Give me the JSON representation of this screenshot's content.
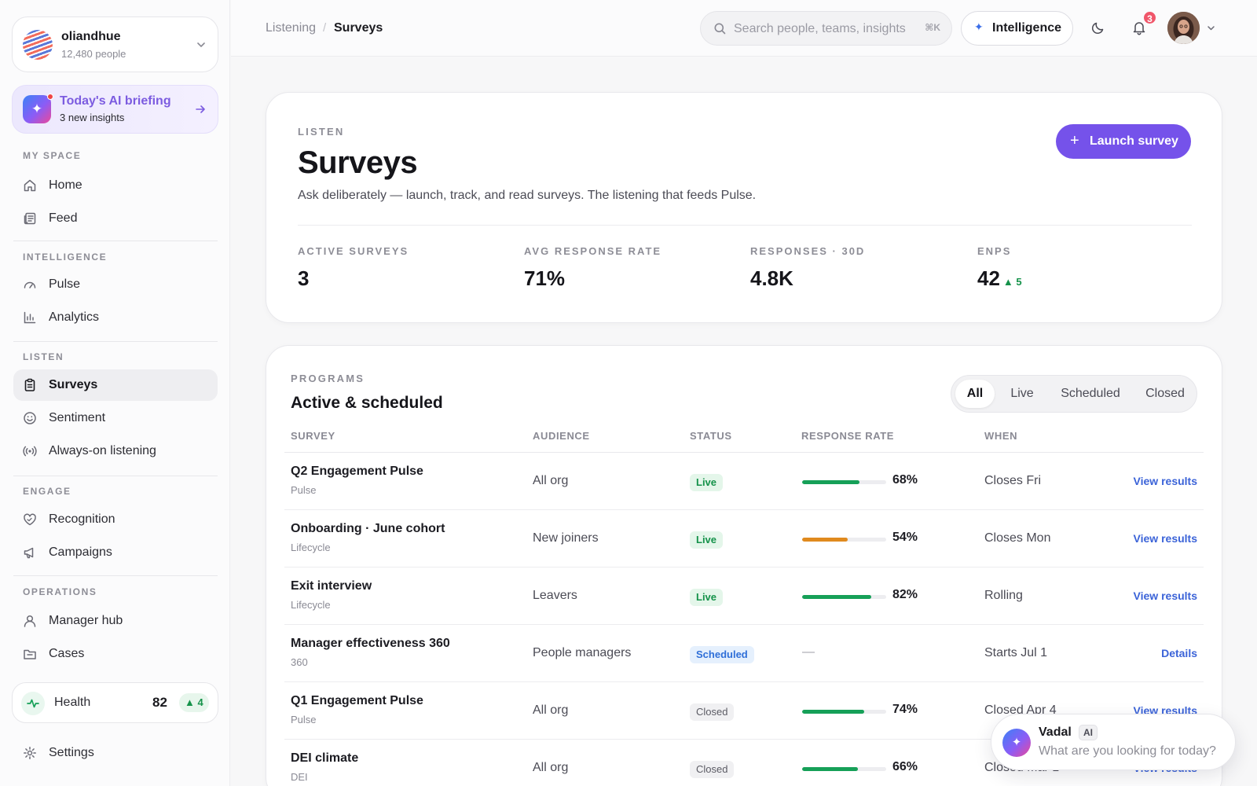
{
  "org": {
    "name": "oliandhue",
    "people": "12,480 people"
  },
  "briefing": {
    "title": "Today's AI briefing",
    "subtitle": "3 new insights"
  },
  "nav": {
    "my_space": "MY SPACE",
    "intelligence": "INTELLIGENCE",
    "listen": "LISTEN",
    "engage": "ENGAGE",
    "operations": "OPERATIONS",
    "home": "Home",
    "feed": "Feed",
    "pulse": "Pulse",
    "analytics": "Analytics",
    "surveys": "Surveys",
    "sentiment": "Sentiment",
    "always_on": "Always-on listening",
    "recognition": "Recognition",
    "campaigns": "Campaigns",
    "manager_hub": "Manager hub",
    "cases": "Cases",
    "settings": "Settings"
  },
  "health": {
    "label": "Health",
    "value": "82",
    "delta": "▲ 4"
  },
  "topbar": {
    "crumb_parent": "Listening",
    "crumb_sep": "/",
    "crumb_current": "Surveys",
    "search_placeholder": "Search people, teams, insights",
    "search_shortcut": "⌘K",
    "intelligence_label": "Intelligence",
    "notifications_count": "3"
  },
  "header": {
    "eyebrow": "LISTEN",
    "title": "Surveys",
    "description": "Ask deliberately — launch, track, and read surveys. The listening that feeds Pulse.",
    "launch_label": "Launch survey",
    "stats": [
      {
        "label": "ACTIVE SURVEYS",
        "value": "3",
        "delta": ""
      },
      {
        "label": "AVG RESPONSE RATE",
        "value": "71%",
        "delta": ""
      },
      {
        "label": "RESPONSES · 30D",
        "value": "4.8K",
        "delta": ""
      },
      {
        "label": "ENPS",
        "value": "42",
        "delta": "▲ 5"
      }
    ]
  },
  "programs": {
    "eyebrow": "PROGRAMS",
    "title": "Active & scheduled",
    "filters": [
      "All",
      "Live",
      "Scheduled",
      "Closed"
    ],
    "active_filter": "All",
    "columns": [
      "SURVEY",
      "AUDIENCE",
      "STATUS",
      "RESPONSE RATE",
      "WHEN"
    ],
    "rows": [
      {
        "name": "Q2 Engagement Pulse",
        "type": "Pulse",
        "audience": "All org",
        "status": "Live",
        "rate": 68,
        "rate_label": "68%",
        "rate_color": "#16a058",
        "when": "Closes Fri",
        "action": "View results"
      },
      {
        "name": "Onboarding · June cohort",
        "type": "Lifecycle",
        "audience": "New joiners",
        "status": "Live",
        "rate": 54,
        "rate_label": "54%",
        "rate_color": "#e08a1e",
        "when": "Closes Mon",
        "action": "View results"
      },
      {
        "name": "Exit interview",
        "type": "Lifecycle",
        "audience": "Leavers",
        "status": "Live",
        "rate": 82,
        "rate_label": "82%",
        "rate_color": "#16a058",
        "when": "Rolling",
        "action": "View results"
      },
      {
        "name": "Manager effectiveness 360",
        "type": "360",
        "audience": "People managers",
        "status": "Scheduled",
        "rate": null,
        "rate_label": "—",
        "rate_color": "",
        "when": "Starts Jul 1",
        "action": "Details"
      },
      {
        "name": "Q1 Engagement Pulse",
        "type": "Pulse",
        "audience": "All org",
        "status": "Closed",
        "rate": 74,
        "rate_label": "74%",
        "rate_color": "#16a058",
        "when": "Closed Apr 4",
        "action": "View results"
      },
      {
        "name": "DEI climate",
        "type": "DEI",
        "audience": "All org",
        "status": "Closed",
        "rate": 66,
        "rate_label": "66%",
        "rate_color": "#16a058",
        "when": "Closed Mar 1",
        "action": "View results"
      }
    ]
  },
  "assistant": {
    "name": "Vadal",
    "tag": "AI",
    "placeholder": "What are you looking for today?"
  },
  "colors": {
    "accent": "#7552ea",
    "positive": "#15924a",
    "link": "#3b63d8"
  }
}
